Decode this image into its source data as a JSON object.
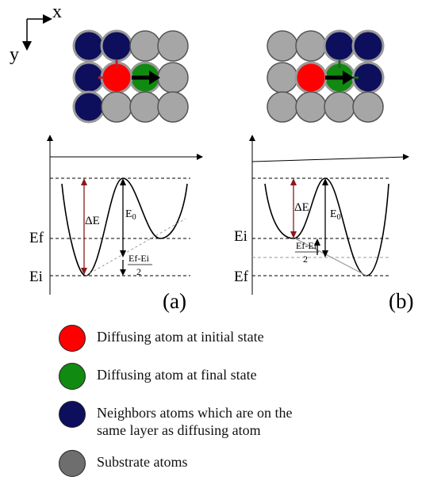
{
  "axes_labels": {
    "x": "x",
    "y": "y"
  },
  "panels": [
    {
      "label": "(a)",
      "upper_level": "Ef",
      "lower_level": "Ei",
      "barrier_label": "ΔE",
      "e0_label": "E",
      "e0_sub": "0",
      "diff_label": "Ef-Ei",
      "diff_den": "2"
    },
    {
      "label": "(b)",
      "upper_level": "Ei",
      "lower_level": "Ef",
      "barrier_label": "ΔE",
      "e0_label": "E",
      "e0_sub": "0",
      "diff_label": "Ef-Ei",
      "diff_den": "2"
    }
  ],
  "colors": {
    "initial": "#ff0000",
    "final": "#118a11",
    "neighbor": "#0d0f5c",
    "substrate": "#a6a6a6",
    "substrate_legend": "#6e6e6e"
  },
  "legend": [
    {
      "color_key": "initial",
      "text": "Diffusing atom at initial state"
    },
    {
      "color_key": "final",
      "text": "Diffusing atom at final state"
    },
    {
      "color_key": "neighbor",
      "text": "Neighbors atoms which are on the\nsame layer as diffusing atom"
    },
    {
      "color_key": "substrate_legend",
      "text": "Substrate atoms"
    }
  ]
}
